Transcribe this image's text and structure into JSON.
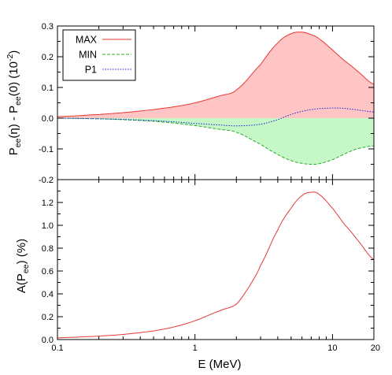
{
  "chart_data": [
    {
      "type": "area",
      "panel": "top",
      "ylabel": "P_ee(η) - P_ee(0)  (10^-2)",
      "ylabel_parts": {
        "p1": "P",
        "s1": "ee",
        "t1": "(η) - P",
        "s2": "ee",
        "t2": "(0)  (10",
        "sup": "-2",
        "t3": ")"
      },
      "x_scale": "log",
      "xlim": [
        0.1,
        20
      ],
      "ylim": [
        -0.2,
        0.3
      ],
      "yticks": [
        "-0.2",
        "-0.1",
        "0.0",
        "0.1",
        "0.2",
        "0.3"
      ],
      "ytick_values": [
        -0.2,
        -0.1,
        0.0,
        0.1,
        0.2,
        0.3
      ],
      "legend_position": "top-left",
      "x": [
        0.1,
        0.2,
        0.3,
        0.5,
        0.7,
        1.0,
        1.5,
        2.0,
        3.0,
        4.0,
        5.0,
        6.0,
        7.0,
        8.0,
        10.0,
        12.0,
        15.0,
        20.0
      ],
      "series": [
        {
          "name": "MAX",
          "color": "#e53935",
          "fill": "#ffc4c4",
          "style": "solid",
          "values": [
            0.005,
            0.012,
            0.018,
            0.028,
            0.037,
            0.05,
            0.072,
            0.092,
            0.175,
            0.245,
            0.275,
            0.28,
            0.272,
            0.258,
            0.222,
            0.19,
            0.155,
            0.11
          ]
        },
        {
          "name": "MIN",
          "color": "#2eaa2e",
          "fill": "#c6f7c6",
          "style": "dashed",
          "values": [
            0.0,
            -0.002,
            -0.005,
            -0.01,
            -0.016,
            -0.024,
            -0.036,
            -0.046,
            -0.085,
            -0.118,
            -0.138,
            -0.147,
            -0.15,
            -0.148,
            -0.135,
            -0.118,
            -0.1,
            -0.09
          ]
        },
        {
          "name": "P1",
          "color": "#1f2fd6",
          "fill": "none",
          "style": "dotted",
          "values": [
            0.0,
            -0.002,
            -0.004,
            -0.008,
            -0.012,
            -0.017,
            -0.022,
            -0.025,
            -0.02,
            -0.005,
            0.012,
            0.022,
            0.028,
            0.031,
            0.033,
            0.032,
            0.027,
            0.02
          ]
        }
      ]
    },
    {
      "type": "line",
      "panel": "bottom",
      "ylabel": "A(P_ee) (%)",
      "ylabel_parts": {
        "p1": "A(P",
        "s1": "ee",
        "t1": ") (%)"
      },
      "xlabel": "E (MeV)",
      "x_scale": "log",
      "xlim": [
        0.1,
        20
      ],
      "ylim": [
        0.0,
        1.4
      ],
      "yticks": [
        "0.0",
        "0.2",
        "0.4",
        "0.6",
        "0.8",
        "1.0",
        "1.2"
      ],
      "ytick_values": [
        0.0,
        0.2,
        0.4,
        0.6,
        0.8,
        1.0,
        1.2
      ],
      "xticks": [
        "0.1",
        "1",
        "10",
        "20"
      ],
      "xtick_values": [
        0.1,
        1,
        10,
        20
      ],
      "x": [
        0.1,
        0.2,
        0.3,
        0.5,
        0.7,
        1.0,
        1.5,
        2.0,
        2.5,
        3.0,
        4.0,
        5.0,
        6.0,
        7.0,
        8.0,
        10.0,
        12.0,
        15.0,
        20.0
      ],
      "series": [
        {
          "name": "A(Pee)",
          "color": "#e53935",
          "values": [
            0.015,
            0.03,
            0.045,
            0.075,
            0.11,
            0.165,
            0.25,
            0.31,
            0.47,
            0.65,
            0.96,
            1.15,
            1.26,
            1.29,
            1.27,
            1.15,
            1.02,
            0.88,
            0.7
          ]
        }
      ]
    }
  ]
}
